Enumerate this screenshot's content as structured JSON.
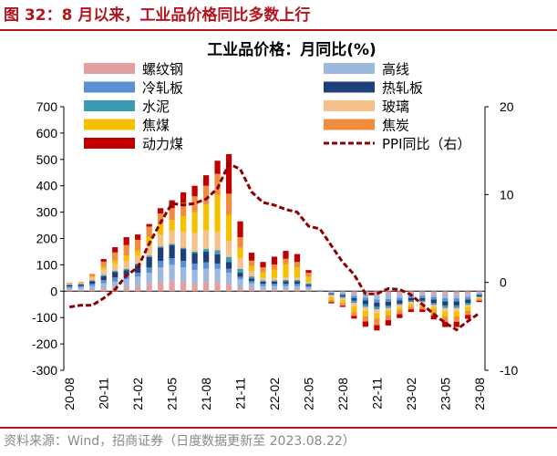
{
  "figure_title": "图 32：8 月以来，工业品价格同比多数上行",
  "source": "资料来源：Wind，招商证券（日度数据更新至 2023.08.22）",
  "chart_data": {
    "type": "bar",
    "stacked": true,
    "title": "工业品价格：月同比(%)",
    "left_axis": {
      "ylim": [
        -300,
        700
      ],
      "ticks": [
        -300,
        -200,
        -100,
        0,
        100,
        200,
        300,
        400,
        500,
        600,
        700
      ]
    },
    "right_axis": {
      "ylim": [
        -10,
        20
      ],
      "ticks": [
        -10,
        0,
        10,
        20
      ]
    },
    "x_tick_labels": [
      "20-08",
      "20-11",
      "21-02",
      "21-05",
      "21-08",
      "21-11",
      "22-02",
      "22-05",
      "22-08",
      "22-11",
      "23-02",
      "23-05",
      "23-08"
    ],
    "categories": [
      "20-08",
      "20-09",
      "20-10",
      "20-11",
      "20-12",
      "21-01",
      "21-02",
      "21-03",
      "21-04",
      "21-05",
      "21-06",
      "21-07",
      "21-08",
      "21-09",
      "21-10",
      "21-11",
      "21-12",
      "22-01",
      "22-02",
      "22-03",
      "22-04",
      "22-05",
      "22-06",
      "22-07",
      "22-08",
      "22-09",
      "22-10",
      "22-11",
      "22-12",
      "23-01",
      "23-02",
      "23-03",
      "23-04",
      "23-05",
      "23-06",
      "23-07",
      "23-08"
    ],
    "series": [
      {
        "name": "螺纹钢",
        "color": "#e3a0a0",
        "values": [
          5,
          5,
          8,
          10,
          12,
          15,
          20,
          30,
          35,
          40,
          35,
          30,
          35,
          35,
          25,
          15,
          10,
          5,
          5,
          5,
          8,
          5,
          0,
          -3,
          -5,
          -8,
          -10,
          -12,
          -10,
          -10,
          -8,
          -8,
          -10,
          -12,
          -12,
          -10,
          -5
        ]
      },
      {
        "name": "高线",
        "color": "#9db8dd",
        "values": [
          8,
          10,
          12,
          20,
          25,
          30,
          35,
          40,
          55,
          60,
          55,
          50,
          50,
          50,
          45,
          30,
          20,
          15,
          15,
          15,
          12,
          10,
          5,
          -3,
          -5,
          -10,
          -15,
          -20,
          -20,
          -15,
          -10,
          -10,
          -12,
          -15,
          -15,
          -12,
          -5
        ]
      },
      {
        "name": "冷轧板",
        "color": "#5a8fd6",
        "values": [
          5,
          5,
          8,
          12,
          15,
          15,
          15,
          20,
          25,
          25,
          25,
          25,
          25,
          20,
          15,
          10,
          8,
          8,
          8,
          8,
          8,
          5,
          0,
          -3,
          -5,
          -8,
          -10,
          -12,
          -10,
          -10,
          -8,
          -8,
          -10,
          -12,
          -12,
          -10,
          -5
        ]
      },
      {
        "name": "热轧板",
        "color": "#1f3f7a",
        "values": [
          5,
          5,
          10,
          15,
          20,
          20,
          30,
          40,
          50,
          50,
          45,
          40,
          40,
          35,
          25,
          15,
          10,
          8,
          8,
          10,
          10,
          5,
          0,
          -3,
          -5,
          -10,
          -15,
          -15,
          -15,
          -12,
          -10,
          -10,
          -12,
          -15,
          -15,
          -12,
          -5
        ]
      },
      {
        "name": "水泥",
        "color": "#3b9bb2",
        "values": [
          3,
          3,
          3,
          5,
          5,
          5,
          5,
          5,
          5,
          5,
          5,
          5,
          10,
          15,
          20,
          15,
          8,
          5,
          5,
          5,
          5,
          5,
          0,
          -3,
          -5,
          -8,
          -10,
          -10,
          -8,
          -5,
          -5,
          -5,
          -8,
          -10,
          -10,
          -8,
          -3
        ]
      },
      {
        "name": "玻璃",
        "color": "#f6c08a",
        "values": [
          3,
          5,
          10,
          20,
          25,
          30,
          30,
          40,
          45,
          50,
          60,
          70,
          70,
          70,
          60,
          40,
          20,
          10,
          10,
          10,
          8,
          5,
          0,
          -8,
          -10,
          -15,
          -15,
          -15,
          -12,
          -10,
          -8,
          -8,
          -10,
          -12,
          -12,
          -8,
          -3
        ]
      },
      {
        "name": "焦煤",
        "color": "#f5c000",
        "values": [
          0,
          0,
          5,
          10,
          15,
          20,
          20,
          30,
          40,
          40,
          60,
          80,
          100,
          140,
          100,
          40,
          20,
          20,
          30,
          50,
          40,
          20,
          0,
          -10,
          -10,
          -20,
          -20,
          -20,
          -15,
          -10,
          -10,
          -10,
          -15,
          -20,
          -20,
          -15,
          -5
        ]
      },
      {
        "name": "焦炭",
        "color": "#f08c3c",
        "values": [
          3,
          3,
          10,
          20,
          30,
          40,
          40,
          40,
          40,
          45,
          50,
          60,
          70,
          80,
          80,
          40,
          20,
          20,
          20,
          20,
          20,
          15,
          0,
          -8,
          -10,
          -15,
          -20,
          -25,
          -20,
          -15,
          -10,
          -10,
          -15,
          -20,
          -20,
          -15,
          -5
        ]
      },
      {
        "name": "动力煤",
        "color": "#c00000",
        "values": [
          0,
          0,
          0,
          10,
          20,
          30,
          20,
          10,
          20,
          30,
          40,
          40,
          40,
          50,
          150,
          60,
          30,
          20,
          30,
          30,
          30,
          10,
          0,
          -5,
          -5,
          -10,
          -20,
          -20,
          -20,
          -15,
          -10,
          -10,
          -15,
          -20,
          -20,
          -15,
          -5
        ]
      }
    ],
    "ppi": {
      "name": "PPI同比（右）",
      "color": "#8b0000",
      "months": [
        "20-08",
        "20-09",
        "20-10",
        "20-11",
        "20-12",
        "21-01",
        "21-02",
        "21-03",
        "21-04",
        "21-05",
        "21-06",
        "21-07",
        "21-08",
        "21-09",
        "21-10",
        "21-11",
        "21-12",
        "22-01",
        "22-02",
        "22-03",
        "22-04",
        "22-05",
        "22-06",
        "22-07",
        "22-08",
        "22-09",
        "22-10",
        "22-11",
        "22-12",
        "23-01",
        "23-02",
        "23-03",
        "23-04",
        "23-05",
        "23-06",
        "23-07",
        "23-08"
      ],
      "values": [
        -2.8,
        -2.6,
        -2.6,
        -1.8,
        -0.8,
        0.8,
        1.7,
        4.4,
        6.8,
        9.0,
        8.8,
        9.0,
        9.5,
        10.7,
        13.5,
        12.9,
        10.3,
        9.1,
        8.8,
        8.3,
        8.0,
        6.4,
        6.1,
        4.2,
        2.3,
        0.9,
        -1.3,
        -1.3,
        -0.7,
        -0.8,
        -1.4,
        -2.5,
        -3.6,
        -4.6,
        -5.4,
        -4.4,
        -3.5
      ]
    }
  }
}
